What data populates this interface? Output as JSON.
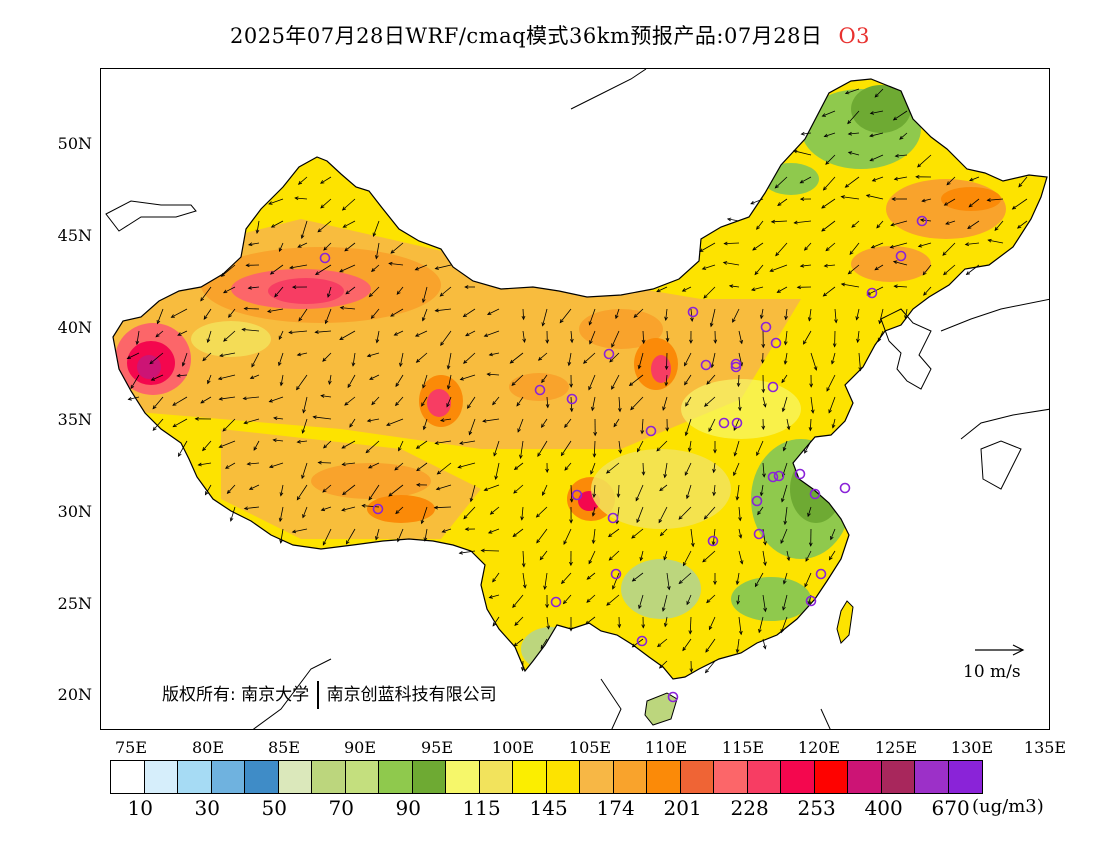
{
  "title": {
    "text": "2025年07月28日WRF/cmaq模式36km预报产品:07月28日",
    "pollutant": "O3",
    "pollutant_color": "#e8312f"
  },
  "lat_labels": [
    "50N",
    "45N",
    "40N",
    "35N",
    "30N",
    "25N",
    "20N"
  ],
  "lon_labels": [
    "75E",
    "80E",
    "85E",
    "90E",
    "95E",
    "100E",
    "105E",
    "110E",
    "115E",
    "120E",
    "125E",
    "130E",
    "135E"
  ],
  "copyright": {
    "prefix": "版权所有:",
    "org1": "南京大学",
    "org2": "南京创蓝科技有限公司"
  },
  "vector_reference": {
    "label": "10 m/s"
  },
  "colorbar": {
    "colors": [
      "#ffffff",
      "#d6eefb",
      "#a6dbf4",
      "#6fb2df",
      "#3f8cc7",
      "#dbe8bb",
      "#bcd67d",
      "#c4df7e",
      "#8fc94d",
      "#6eaa33",
      "#f6f76a",
      "#f2e35c",
      "#fbee00",
      "#fde300",
      "#f7b745",
      "#f9a32c",
      "#fb8a08",
      "#ef6435",
      "#fc6669",
      "#f73d63",
      "#f4074e",
      "#fe0200",
      "#cc1475",
      "#a8275c",
      "#9c30c8",
      "#8a23d8"
    ],
    "labels": [
      "10",
      "30",
      "50",
      "70",
      "90",
      "115",
      "145",
      "174",
      "201",
      "228",
      "253",
      "400",
      "670"
    ],
    "unit": "(ug/m3)"
  }
}
